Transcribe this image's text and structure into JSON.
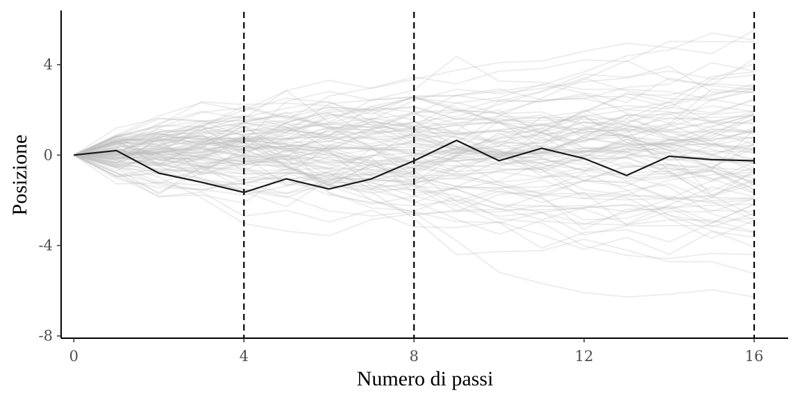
{
  "chart_data": {
    "type": "line",
    "title": "",
    "xlabel": "Numero di passi",
    "ylabel": "Posizione",
    "xlim": [
      -0.3,
      16.8
    ],
    "ylim": [
      -8.1,
      6.4
    ],
    "x_ticks": [
      0,
      4,
      8,
      12,
      16
    ],
    "x_tick_labels": [
      "0",
      "4",
      "8",
      "12",
      "16"
    ],
    "y_ticks": [
      -8,
      -4,
      0,
      4
    ],
    "y_tick_labels": [
      "-8",
      "-4",
      "0",
      "4"
    ],
    "vlines": [
      4,
      8,
      16
    ],
    "grid": false,
    "legend": "none",
    "highlighted_series": {
      "x": [
        0,
        1,
        2,
        3,
        4,
        5,
        6,
        7,
        8,
        9,
        10,
        11,
        12,
        13,
        14,
        15,
        16
      ],
      "y": [
        0,
        0.2,
        -0.8,
        -1.2,
        -1.65,
        -1.05,
        -1.5,
        -1.05,
        -0.25,
        0.65,
        -0.25,
        0.3,
        -0.15,
        -0.9,
        -0.05,
        -0.2,
        -0.25
      ]
    },
    "background_series_count": 100,
    "colors": {
      "highlight": "#1a1a1a",
      "background_lines": "#bdbdbd",
      "vlines": "#000000",
      "axis": "#000000"
    }
  }
}
